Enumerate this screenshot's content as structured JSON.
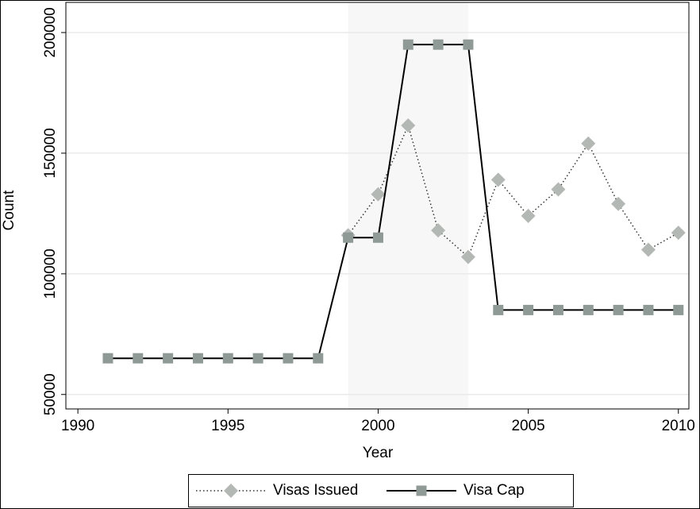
{
  "chart_data": {
    "type": "line",
    "x_label": "Year",
    "y_label": "Count",
    "x": [
      1991,
      1992,
      1993,
      1994,
      1995,
      1996,
      1997,
      1998,
      1999,
      2000,
      2001,
      2002,
      2003,
      2004,
      2005,
      2006,
      2007,
      2008,
      2009,
      2010
    ],
    "series": [
      {
        "name": "Visas Issued",
        "color": "#b3b8b4",
        "line_color": "#333333",
        "line_style": "dotted",
        "marker": "diamond",
        "values": [
          null,
          null,
          null,
          null,
          null,
          null,
          null,
          null,
          116000,
          133000,
          161500,
          118000,
          107000,
          139000,
          124000,
          135000,
          154000,
          129000,
          110000,
          117000
        ]
      },
      {
        "name": "Visa Cap",
        "color": "#8f9a96",
        "line_color": "#000000",
        "line_style": "solid",
        "marker": "square",
        "values": [
          65000,
          65000,
          65000,
          65000,
          65000,
          65000,
          65000,
          65000,
          115000,
          115000,
          195000,
          195000,
          195000,
          85000,
          85000,
          85000,
          85000,
          85000,
          85000,
          85000
        ]
      }
    ],
    "highlight_x": [
      1999,
      2003
    ],
    "xlim": [
      1989.6,
      2010.35
    ],
    "xticks": [
      1990,
      1995,
      2000,
      2005,
      2010
    ],
    "ylim": [
      44000,
      212500
    ],
    "yticks": [
      50000,
      100000,
      150000,
      200000
    ],
    "grid": true,
    "legend": "bottom"
  }
}
